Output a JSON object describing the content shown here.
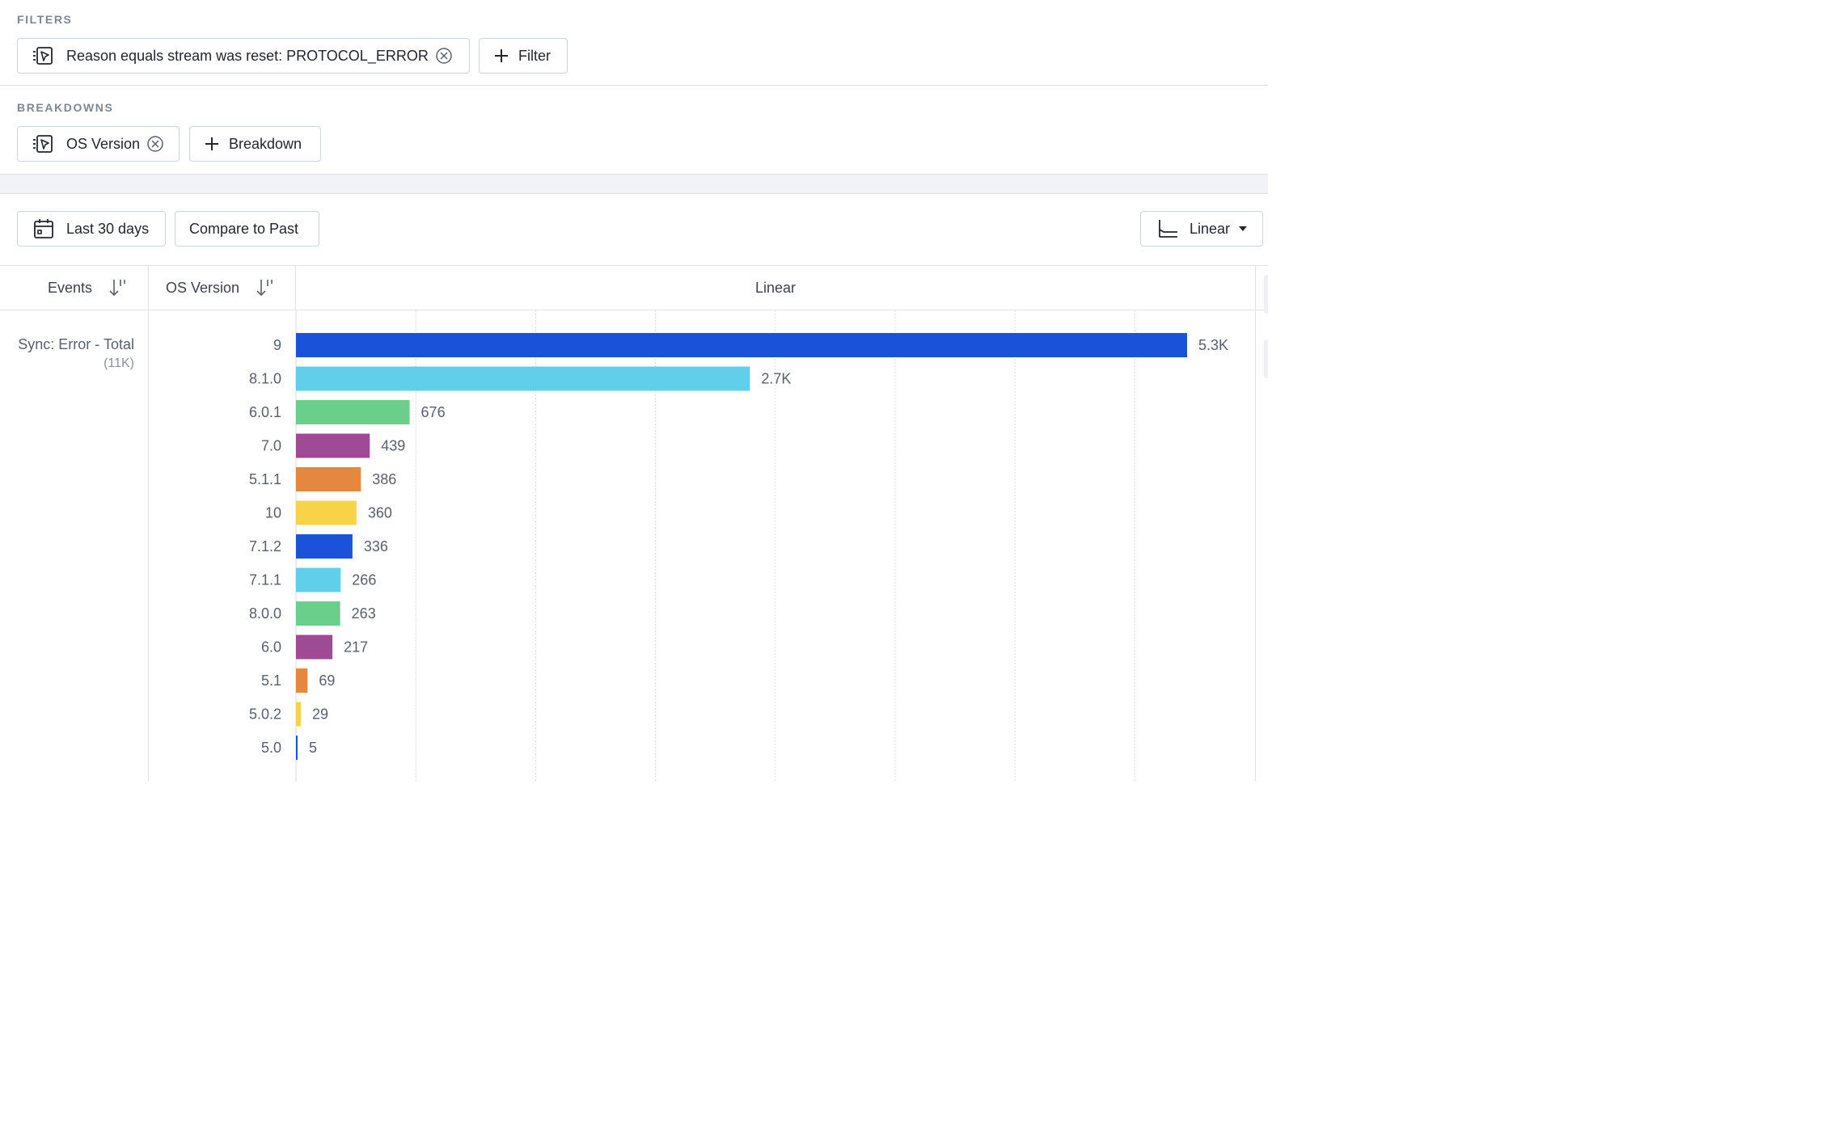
{
  "filters": {
    "title": "FILTERS",
    "chip_label": "Reason equals stream was reset: PROTOCOL_ERROR",
    "add_label": "Filter"
  },
  "breakdowns": {
    "title": "BREAKDOWNS",
    "chip_label": "OS Version",
    "add_label": "Breakdown"
  },
  "toolbar": {
    "date_range": "Last 30 days",
    "compare": "Compare to Past",
    "scale": "Linear"
  },
  "table": {
    "col_events": "Events",
    "col_breakdown": "OS Version",
    "col_chart": "Linear",
    "event_name": "Sync: Error - Total",
    "event_total": "(11K)"
  },
  "icons": {
    "filter_chip": "event-selector-icon",
    "remove": "remove-circle-icon",
    "add": "plus-icon",
    "calendar": "calendar-icon",
    "scale": "line-chart-axis-icon",
    "dropdown": "caret-down-icon",
    "sort": "sort-icon"
  },
  "chart_data": {
    "type": "bar",
    "orientation": "horizontal",
    "categories": [
      "9",
      "8.1.0",
      "6.0.1",
      "7.0",
      "5.1.1",
      "10",
      "7.1.2",
      "7.1.1",
      "8.0.0",
      "6.0",
      "5.1",
      "5.0.2",
      "5.0"
    ],
    "values": [
      5300,
      2700,
      676,
      439,
      386,
      360,
      336,
      266,
      263,
      217,
      69,
      29,
      5
    ],
    "value_labels": [
      "5.3K",
      "2.7K",
      "676",
      "439",
      "386",
      "360",
      "336",
      "266",
      "263",
      "217",
      "69",
      "29",
      "5"
    ],
    "colors": [
      "#1a53d9",
      "#60cfe9",
      "#6acf8b",
      "#9e4a95",
      "#e4883f",
      "#f8d347",
      "#1a53d9",
      "#60cfe9",
      "#6acf8b",
      "#9e4a95",
      "#e4883f",
      "#f8d347",
      "#1a53d9"
    ],
    "xlim": [
      0,
      5300
    ],
    "grid": "vertical dotted"
  }
}
